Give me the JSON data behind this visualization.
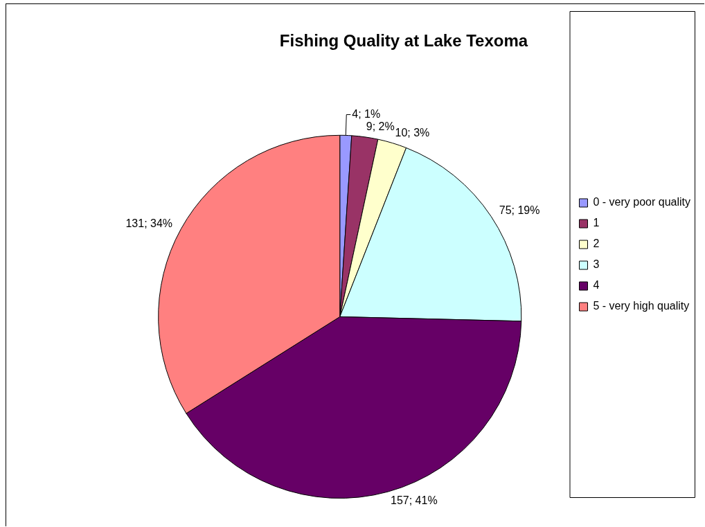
{
  "chart_data": {
    "type": "pie",
    "title": "Fishing Quality at Lake Texoma",
    "categories": [
      "0 - very poor quality",
      "1",
      "2",
      "3",
      "4",
      "5 - very high quality"
    ],
    "values": [
      4,
      9,
      10,
      75,
      157,
      131
    ],
    "colors": [
      "#9999ff",
      "#993366",
      "#ffffcc",
      "#ccffff",
      "#660066",
      "#ff8080"
    ],
    "value_labels": [
      "4; 1%",
      "9; 2%",
      "10; 3%",
      "75; 19%",
      "157; 41%",
      "131; 34%"
    ],
    "legend": "right"
  }
}
